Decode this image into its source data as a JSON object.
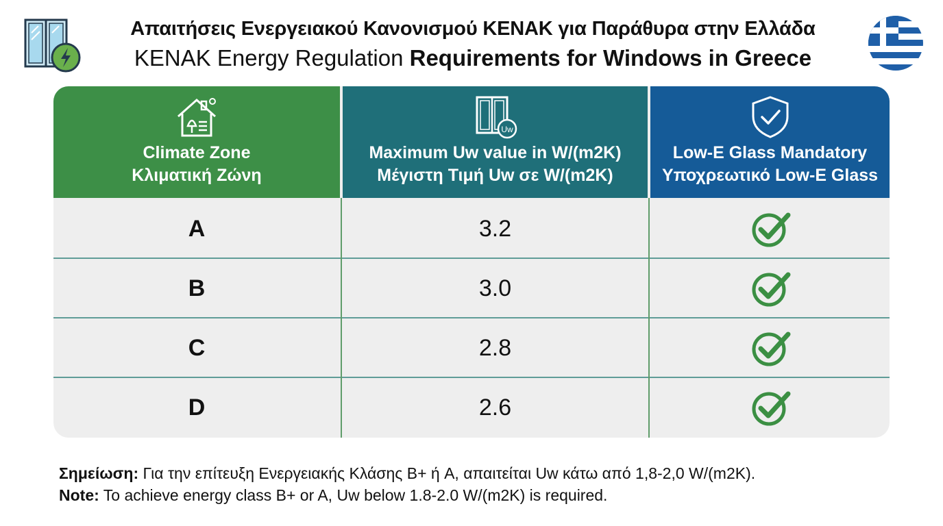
{
  "header": {
    "title_greek": "Απαιτήσεις Ενεργειακού Κανονισμού KENAK για Παράθυρα στην Ελλάδα",
    "title_english_plain": "KENAK Energy Regulation ",
    "title_english_bold": "Requirements for Windows in Greece",
    "left_icon": "energy-window-icon",
    "right_icon": "greek-flag-icon"
  },
  "chart_data": {
    "type": "table",
    "columns": [
      {
        "label_en": "Climate Zone",
        "label_gr": "Κλιματική Ζώνη",
        "icon": "house-icon",
        "color": "#3d8f47"
      },
      {
        "label_en": "Maximum Uw value in W/(m2K)",
        "label_gr": "Μέγιστη Τιμή Uw σε W/(m2K)",
        "icon": "window-uw-icon",
        "color": "#1f6f79"
      },
      {
        "label_en": "Low-E Glass Mandatory",
        "label_gr": "Υποχρεωτικό Low-E Glass",
        "icon": "shield-check-icon",
        "color": "#155b98"
      }
    ],
    "rows": [
      {
        "zone": "A",
        "uw": "3.2",
        "low_e": true
      },
      {
        "zone": "B",
        "uw": "3.0",
        "low_e": true
      },
      {
        "zone": "C",
        "uw": "2.8",
        "low_e": true
      },
      {
        "zone": "D",
        "uw": "2.6",
        "low_e": true
      }
    ]
  },
  "notes": {
    "greek_label": "Σημείωση:",
    "greek_text": " Για την επίτευξη Ενεργειακής Κλάσης B+ ή A, απαιτείται Uw κάτω από 1,8-2,0 W/(m2K).",
    "english_label": "Note:",
    "english_text": " To achieve energy class B+ or A, Uw below 1.8-2.0 W/(m2K) is required."
  },
  "colors": {
    "check": "#3b8f43",
    "flag_blue": "#1f5fa8"
  }
}
